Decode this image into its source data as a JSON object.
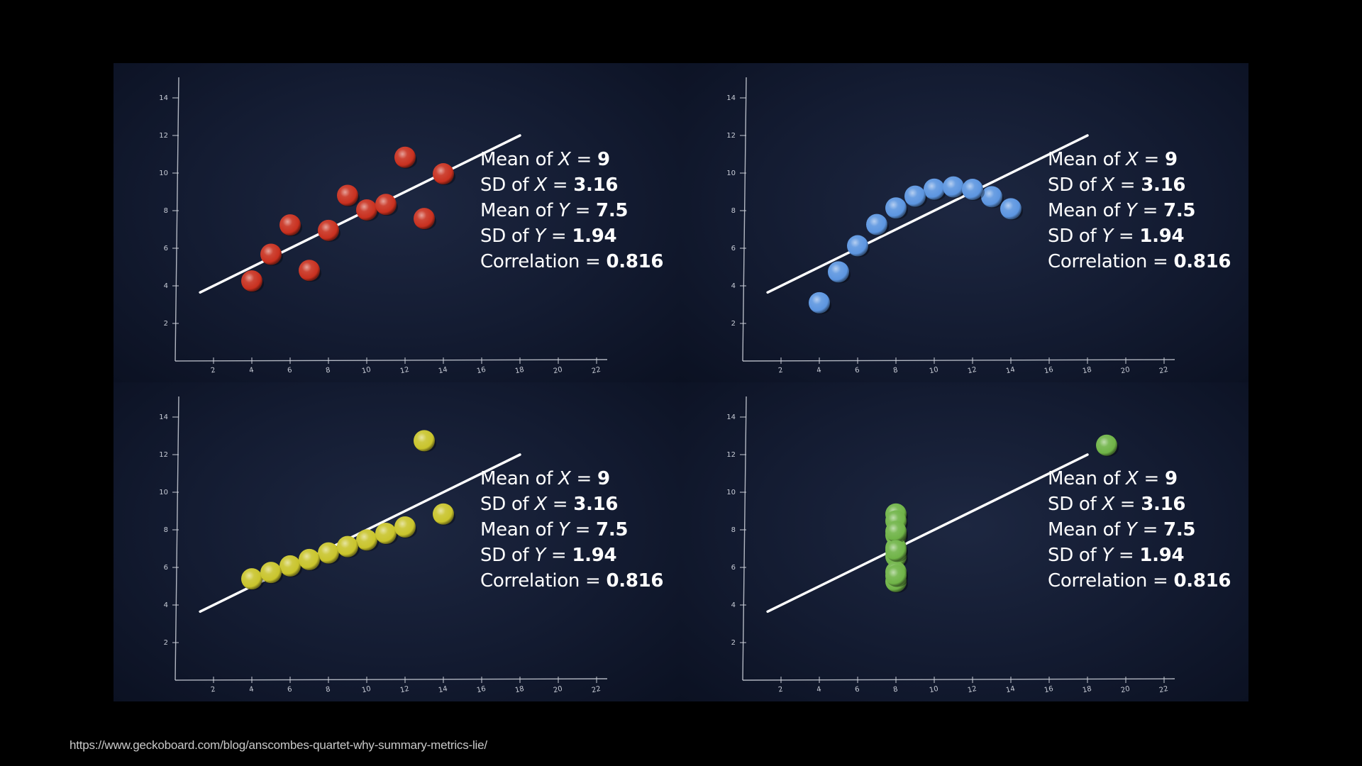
{
  "source_url": "https://www.geckoboard.com/blog/anscombes-quartet-why-summary-metrics-lie/",
  "stat_lines": [
    {
      "pre": "Mean of ",
      "var": "X",
      "mid": " = ",
      "val": "9"
    },
    {
      "pre": "SD of ",
      "var": "X",
      "mid": " = ",
      "val": "3.16"
    },
    {
      "pre": "Mean of ",
      "var": "Y",
      "mid": " = ",
      "val": "7.5"
    },
    {
      "pre": "SD of ",
      "var": "Y",
      "mid": " = ",
      "val": "1.94"
    },
    {
      "pre": "Correlation = ",
      "var": "",
      "mid": "",
      "val": "0.816"
    }
  ],
  "colors": {
    "background": "#000000",
    "panel": "#151d33",
    "axis": "#cfd3dc",
    "regression_line": "#ffffff",
    "set1": "#c8301f",
    "set2": "#5c95e0",
    "set3": "#c9c42c",
    "set4": "#6fb347"
  },
  "chart_data": [
    {
      "type": "scatter",
      "x_ticks": [
        2,
        4,
        6,
        8,
        10,
        12,
        14,
        16,
        18,
        20,
        22
      ],
      "y_ticks": [
        2,
        4,
        6,
        8,
        10,
        12,
        14
      ],
      "xlim": [
        0,
        22
      ],
      "ylim": [
        0,
        15
      ],
      "regression": {
        "slope": 0.5,
        "intercept": 3,
        "x_range": [
          1.3,
          18
        ]
      },
      "color": "#c8301f",
      "points": [
        [
          10,
          8.04
        ],
        [
          8,
          6.95
        ],
        [
          13,
          7.58
        ],
        [
          9,
          8.81
        ],
        [
          11,
          8.33
        ],
        [
          14,
          9.96
        ],
        [
          6,
          7.24
        ],
        [
          4,
          4.26
        ],
        [
          12,
          10.84
        ],
        [
          7,
          4.82
        ],
        [
          5,
          5.68
        ]
      ]
    },
    {
      "type": "scatter",
      "x_ticks": [
        2,
        4,
        6,
        8,
        10,
        12,
        14,
        16,
        18,
        20,
        22
      ],
      "y_ticks": [
        2,
        4,
        6,
        8,
        10,
        12,
        14
      ],
      "xlim": [
        0,
        22
      ],
      "ylim": [
        0,
        15
      ],
      "regression": {
        "slope": 0.5,
        "intercept": 3,
        "x_range": [
          1.3,
          18
        ]
      },
      "color": "#5c95e0",
      "points": [
        [
          10,
          9.14
        ],
        [
          8,
          8.14
        ],
        [
          13,
          8.74
        ],
        [
          9,
          8.77
        ],
        [
          11,
          9.26
        ],
        [
          14,
          8.1
        ],
        [
          6,
          6.13
        ],
        [
          4,
          3.1
        ],
        [
          12,
          9.13
        ],
        [
          7,
          7.26
        ],
        [
          5,
          4.74
        ]
      ]
    },
    {
      "type": "scatter",
      "x_ticks": [
        2,
        4,
        6,
        8,
        10,
        12,
        14,
        16,
        18,
        20,
        22
      ],
      "y_ticks": [
        2,
        4,
        6,
        8,
        10,
        12,
        14
      ],
      "xlim": [
        0,
        22
      ],
      "ylim": [
        0,
        15
      ],
      "regression": {
        "slope": 0.5,
        "intercept": 3,
        "x_range": [
          1.3,
          18
        ]
      },
      "color": "#c9c42c",
      "points": [
        [
          10,
          7.46
        ],
        [
          8,
          6.77
        ],
        [
          13,
          12.74
        ],
        [
          9,
          7.11
        ],
        [
          11,
          7.81
        ],
        [
          14,
          8.84
        ],
        [
          6,
          6.08
        ],
        [
          4,
          5.39
        ],
        [
          12,
          8.15
        ],
        [
          7,
          6.42
        ],
        [
          5,
          5.73
        ]
      ]
    },
    {
      "type": "scatter",
      "x_ticks": [
        2,
        4,
        6,
        8,
        10,
        12,
        14,
        16,
        18,
        20,
        22
      ],
      "y_ticks": [
        2,
        4,
        6,
        8,
        10,
        12,
        14
      ],
      "xlim": [
        0,
        22
      ],
      "ylim": [
        0,
        15
      ],
      "regression": {
        "slope": 0.5,
        "intercept": 3,
        "x_range": [
          1.3,
          18
        ]
      },
      "color": "#6fb347",
      "points": [
        [
          8,
          6.58
        ],
        [
          8,
          5.76
        ],
        [
          8,
          7.71
        ],
        [
          8,
          8.84
        ],
        [
          8,
          8.47
        ],
        [
          8,
          7.04
        ],
        [
          8,
          5.25
        ],
        [
          19,
          12.5
        ],
        [
          8,
          5.56
        ],
        [
          8,
          7.91
        ],
        [
          8,
          6.89
        ]
      ]
    }
  ]
}
